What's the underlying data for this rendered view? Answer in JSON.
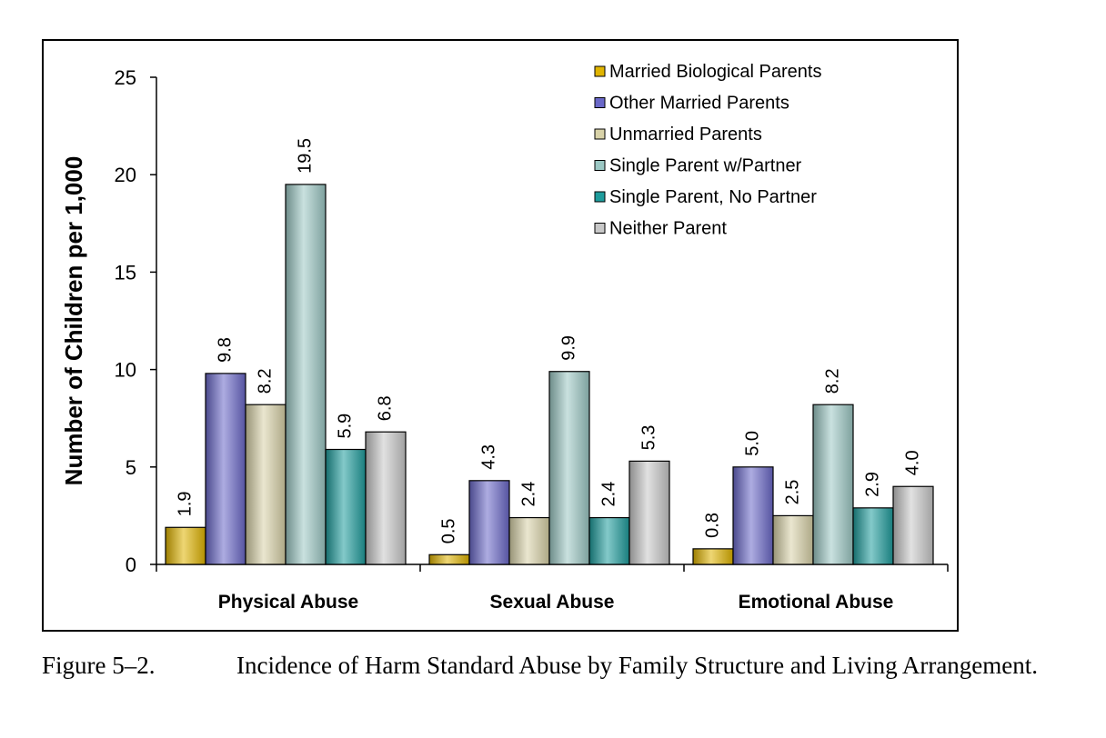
{
  "chart_data": {
    "type": "bar",
    "title": "",
    "xlabel": "",
    "ylabel": "Number of Children per 1,000",
    "ylim": [
      0,
      25
    ],
    "yticks": [
      0,
      5,
      10,
      15,
      20,
      25
    ],
    "grid": false,
    "legend_position": "top-right",
    "categories": [
      "Physical Abuse",
      "Sexual Abuse",
      "Emotional Abuse"
    ],
    "series": [
      {
        "name": "Married Biological Parents",
        "values": [
          1.9,
          0.5,
          0.8
        ],
        "labels": [
          "1.9",
          "0.5",
          "0.8"
        ],
        "color": "#e0b400"
      },
      {
        "name": "Other Married Parents",
        "values": [
          9.8,
          4.3,
          5.0
        ],
        "labels": [
          "9.8",
          "4.3",
          "5.0"
        ],
        "color": "#6a68c8"
      },
      {
        "name": "Unmarried Parents",
        "values": [
          8.2,
          2.4,
          2.5
        ],
        "labels": [
          "8.2",
          "2.4",
          "2.5"
        ],
        "color": "#d8d2a8"
      },
      {
        "name": "Single Parent w/Partner",
        "values": [
          19.5,
          9.9,
          8.2
        ],
        "labels": [
          "19.5",
          "9.9",
          "8.2"
        ],
        "color": "#9cc8c4"
      },
      {
        "name": "Single Parent, No Partner",
        "values": [
          5.9,
          2.4,
          2.9
        ],
        "labels": [
          "5.9",
          "2.4",
          "2.9"
        ],
        "color": "#1e9c9c"
      },
      {
        "name": "Neither Parent",
        "values": [
          6.8,
          5.3,
          4.0
        ],
        "labels": [
          "6.8",
          "5.3",
          "4.0"
        ],
        "color": "#c8c8c8"
      }
    ]
  },
  "caption": {
    "label": "Figure 5–2.",
    "text": "Incidence of Harm Standard Abuse by Family Structure and Living Arrangement."
  }
}
